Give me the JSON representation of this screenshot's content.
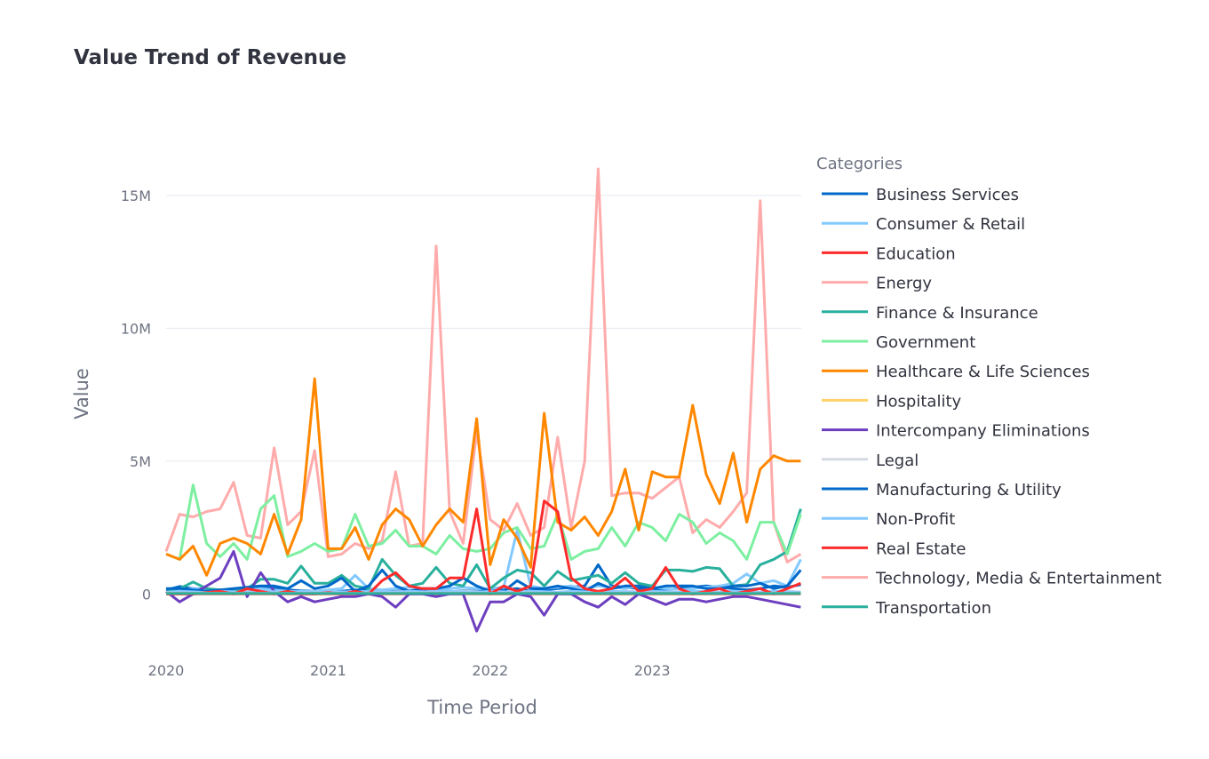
{
  "chart_data": {
    "type": "line",
    "title": "Value Trend of Revenue",
    "xlabel": "Time Period",
    "ylabel": "Value",
    "legend_title": "Categories",
    "legend_position": "right",
    "grid": true,
    "ylim": [
      -2400000,
      16000000
    ],
    "x_ticks": [
      {
        "label": "2020",
        "value": 2020.0
      },
      {
        "label": "2021",
        "value": 2021.0
      },
      {
        "label": "2022",
        "value": 2022.0
      },
      {
        "label": "2023",
        "value": 2023.0
      }
    ],
    "y_ticks": [
      {
        "label": "0",
        "value": 0
      },
      {
        "label": "5M",
        "value": 5000000
      },
      {
        "label": "10M",
        "value": 10000000
      },
      {
        "label": "15M",
        "value": 15000000
      }
    ],
    "x": [
      "2020-01",
      "2020-02",
      "2020-03",
      "2020-04",
      "2020-05",
      "2020-06",
      "2020-07",
      "2020-08",
      "2020-09",
      "2020-10",
      "2020-11",
      "2020-12",
      "2021-01",
      "2021-02",
      "2021-03",
      "2021-04",
      "2021-05",
      "2021-06",
      "2021-07",
      "2021-08",
      "2021-09",
      "2021-10",
      "2021-11",
      "2021-12",
      "2022-01",
      "2022-02",
      "2022-03",
      "2022-04",
      "2022-05",
      "2022-06",
      "2022-07",
      "2022-08",
      "2022-09",
      "2022-10",
      "2022-11",
      "2022-12",
      "2023-01",
      "2023-02",
      "2023-03",
      "2023-04",
      "2023-05",
      "2023-06",
      "2023-07",
      "2023-08",
      "2023-09",
      "2023-10",
      "2023-11",
      "2023-12"
    ],
    "series": [
      {
        "name": "Business Services",
        "color": "#0068c9",
        "values": [
          150000,
          280000,
          200000,
          180000,
          150000,
          120000,
          180000,
          250000,
          200000,
          150000,
          120000,
          100000,
          80000,
          100000,
          150000,
          120000,
          100000,
          100000,
          120000,
          150000,
          100000,
          80000,
          120000,
          100000,
          120000,
          150000,
          200000,
          100000,
          150000,
          200000,
          250000,
          300000,
          1100000,
          300000,
          250000,
          200000,
          180000,
          150000,
          200000,
          250000,
          300000,
          250000,
          200000,
          150000,
          200000,
          300000,
          250000,
          350000
        ]
      },
      {
        "name": "Consumer & Retail",
        "color": "#83c9ff",
        "values": [
          100000,
          150000,
          200000,
          150000,
          100000,
          80000,
          150000,
          200000,
          150000,
          100000,
          80000,
          100000,
          150000,
          200000,
          700000,
          200000,
          150000,
          200000,
          250000,
          200000,
          150000,
          200000,
          250000,
          200000,
          200000,
          250000,
          2400000,
          300000,
          200000,
          250000,
          300000,
          200000,
          300000,
          250000,
          200000,
          300000,
          250000,
          200000,
          150000,
          200000,
          250000,
          300000,
          400000,
          750000,
          400000,
          500000,
          300000,
          1300000
        ]
      },
      {
        "name": "Education",
        "color": "#ff2b2b",
        "values": [
          0,
          0,
          0,
          0,
          0,
          0,
          0,
          0,
          0,
          0,
          0,
          0,
          0,
          0,
          0,
          0,
          0,
          0,
          0,
          0,
          0,
          0,
          0,
          0,
          0,
          0,
          0,
          0,
          0,
          0,
          0,
          0,
          0,
          0,
          0,
          0,
          0,
          0,
          0,
          0,
          0,
          0,
          0,
          0,
          0,
          0,
          0,
          0
        ]
      },
      {
        "name": "Energy",
        "color": "#ffabab",
        "values": [
          1600000,
          3000000,
          2900000,
          3100000,
          3200000,
          4200000,
          2200000,
          2100000,
          5500000,
          2600000,
          3100000,
          5400000,
          1400000,
          1500000,
          1900000,
          1700000,
          2000000,
          4600000,
          1800000,
          1900000,
          13100000,
          3100000,
          1900000,
          6100000,
          2800000,
          2400000,
          3400000,
          2200000,
          2500000,
          5900000,
          2500000,
          5000000,
          16000000,
          3700000,
          3800000,
          3800000,
          3600000,
          4000000,
          4400000,
          2300000,
          2800000,
          2500000,
          3100000,
          3800000,
          14800000,
          2700000,
          1200000,
          1500000
        ]
      },
      {
        "name": "Finance & Insurance",
        "color": "#29b09d",
        "values": [
          150000,
          200000,
          450000,
          200000,
          150000,
          100000,
          200000,
          550000,
          550000,
          400000,
          1050000,
          400000,
          400000,
          700000,
          300000,
          200000,
          1300000,
          700000,
          300000,
          400000,
          1000000,
          400000,
          300000,
          1100000,
          200000,
          600000,
          900000,
          800000,
          300000,
          850000,
          500000,
          600000,
          700000,
          400000,
          800000,
          400000,
          300000,
          900000,
          900000,
          850000,
          1000000,
          950000,
          300000,
          350000,
          1100000,
          1300000,
          1600000,
          3200000
        ]
      },
      {
        "name": "Government",
        "color": "#7defa1",
        "values": [
          1500000,
          1300000,
          4100000,
          1900000,
          1400000,
          1900000,
          1300000,
          3200000,
          3700000,
          1400000,
          1600000,
          1900000,
          1600000,
          1700000,
          3000000,
          1800000,
          1900000,
          2400000,
          1800000,
          1800000,
          1500000,
          2200000,
          1700000,
          1600000,
          1700000,
          2300000,
          2500000,
          1700000,
          1800000,
          3000000,
          1300000,
          1600000,
          1700000,
          2500000,
          1800000,
          2700000,
          2500000,
          2000000,
          3000000,
          2700000,
          1900000,
          2300000,
          2000000,
          1300000,
          2700000,
          2700000,
          1500000,
          3000000
        ]
      },
      {
        "name": "Healthcare & Life Sciences",
        "color": "#ff8700",
        "values": [
          1500000,
          1300000,
          1800000,
          700000,
          1900000,
          2100000,
          1900000,
          1500000,
          3000000,
          1500000,
          2800000,
          8100000,
          1700000,
          1700000,
          2500000,
          1300000,
          2600000,
          3200000,
          2800000,
          1800000,
          2600000,
          3200000,
          2700000,
          6600000,
          1100000,
          2800000,
          2100000,
          1000000,
          6800000,
          2700000,
          2400000,
          2900000,
          2200000,
          3100000,
          4700000,
          2400000,
          4600000,
          4400000,
          4400000,
          7100000,
          4500000,
          3400000,
          5300000,
          2700000,
          4700000,
          5200000,
          5000000,
          5000000
        ]
      },
      {
        "name": "Hospitality",
        "color": "#ffd16a",
        "values": [
          20000,
          20000,
          20000,
          20000,
          20000,
          20000,
          20000,
          20000,
          20000,
          20000,
          20000,
          20000,
          20000,
          20000,
          20000,
          20000,
          20000,
          20000,
          20000,
          20000,
          20000,
          20000,
          20000,
          20000,
          20000,
          20000,
          20000,
          20000,
          20000,
          20000,
          20000,
          20000,
          20000,
          20000,
          20000,
          20000,
          20000,
          20000,
          20000,
          20000,
          20000,
          20000,
          20000,
          20000,
          20000,
          20000,
          20000,
          20000
        ]
      },
      {
        "name": "Intercompany Eliminations",
        "color": "#6d3fc0",
        "values": [
          100000,
          -300000,
          0,
          300000,
          600000,
          1600000,
          -100000,
          800000,
          100000,
          -300000,
          -100000,
          -300000,
          -200000,
          -100000,
          -100000,
          0,
          -100000,
          -500000,
          0,
          0,
          -100000,
          0,
          0,
          -1400000,
          -300000,
          -300000,
          0,
          -100000,
          -800000,
          0,
          0,
          -300000,
          -500000,
          -100000,
          -400000,
          0,
          -200000,
          -400000,
          -200000,
          -200000,
          -300000,
          -200000,
          -100000,
          -100000,
          -200000,
          -300000,
          -400000,
          -500000
        ]
      },
      {
        "name": "Legal",
        "color": "#d5dae5",
        "values": [
          50000,
          80000,
          100000,
          80000,
          50000,
          60000,
          80000,
          100000,
          80000,
          60000,
          80000,
          100000,
          80000,
          60000,
          100000,
          80000,
          60000,
          80000,
          100000,
          80000,
          60000,
          80000,
          100000,
          80000,
          60000,
          100000,
          80000,
          100000,
          80000,
          60000,
          100000,
          80000,
          60000,
          80000,
          100000,
          80000,
          60000,
          80000,
          100000,
          80000,
          60000,
          80000,
          100000,
          80000,
          60000,
          80000,
          100000,
          80000
        ]
      },
      {
        "name": "Manufacturing & Utility",
        "color": "#0068c9",
        "values": [
          200000,
          200000,
          150000,
          100000,
          150000,
          200000,
          250000,
          300000,
          300000,
          200000,
          500000,
          200000,
          300000,
          600000,
          100000,
          300000,
          900000,
          300000,
          100000,
          200000,
          200000,
          300000,
          600000,
          300000,
          100000,
          100000,
          500000,
          200000,
          200000,
          300000,
          200000,
          100000,
          400000,
          200000,
          300000,
          300000,
          200000,
          300000,
          300000,
          300000,
          200000,
          200000,
          300000,
          300000,
          400000,
          200000,
          300000,
          900000
        ]
      },
      {
        "name": "Non-Profit",
        "color": "#83c9ff",
        "values": [
          50000,
          100000,
          80000,
          50000,
          100000,
          80000,
          60000,
          100000,
          80000,
          60000,
          100000,
          80000,
          100000,
          80000,
          60000,
          100000,
          80000,
          60000,
          100000,
          80000,
          60000,
          100000,
          80000,
          60000,
          100000,
          80000,
          60000,
          100000,
          80000,
          60000,
          100000,
          80000,
          60000,
          100000,
          80000,
          60000,
          100000,
          80000,
          60000,
          100000,
          80000,
          60000,
          100000,
          80000,
          60000,
          100000,
          80000,
          60000
        ]
      },
      {
        "name": "Real Estate",
        "color": "#ff2b2b",
        "values": [
          0,
          0,
          0,
          50000,
          100000,
          0,
          200000,
          100000,
          0,
          100000,
          0,
          0,
          50000,
          0,
          100000,
          0,
          500000,
          800000,
          300000,
          200000,
          200000,
          600000,
          600000,
          3200000,
          0,
          300000,
          100000,
          300000,
          3500000,
          3100000,
          600000,
          200000,
          100000,
          200000,
          600000,
          100000,
          200000,
          1000000,
          200000,
          0,
          100000,
          200000,
          0,
          100000,
          200000,
          0,
          200000,
          400000
        ]
      },
      {
        "name": "Technology, Media & Entertainment",
        "color": "#ffabab",
        "values": [
          30000,
          30000,
          30000,
          30000,
          30000,
          30000,
          30000,
          30000,
          30000,
          30000,
          30000,
          30000,
          30000,
          30000,
          30000,
          30000,
          30000,
          30000,
          30000,
          30000,
          30000,
          30000,
          30000,
          30000,
          30000,
          30000,
          30000,
          30000,
          30000,
          30000,
          30000,
          30000,
          30000,
          30000,
          30000,
          30000,
          30000,
          30000,
          30000,
          30000,
          30000,
          30000,
          30000,
          30000,
          30000,
          30000,
          30000,
          30000
        ]
      },
      {
        "name": "Transportation",
        "color": "#29b09d",
        "values": [
          20000,
          20000,
          20000,
          20000,
          20000,
          20000,
          20000,
          20000,
          20000,
          20000,
          20000,
          20000,
          20000,
          20000,
          20000,
          20000,
          20000,
          20000,
          20000,
          20000,
          20000,
          20000,
          20000,
          20000,
          20000,
          20000,
          20000,
          20000,
          20000,
          20000,
          20000,
          20000,
          20000,
          20000,
          20000,
          20000,
          20000,
          20000,
          20000,
          20000,
          20000,
          20000,
          20000,
          20000,
          20000,
          20000,
          20000,
          20000
        ]
      }
    ]
  }
}
